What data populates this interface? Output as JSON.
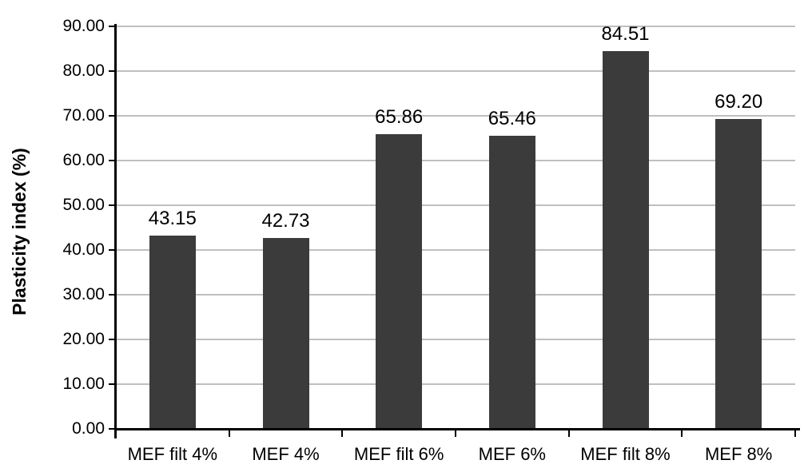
{
  "chart_data": {
    "type": "bar",
    "title": "",
    "xlabel": "",
    "ylabel": "Plasticity index (%)",
    "categories": [
      "MEF filt 4%",
      "MEF 4%",
      "MEF filt 6%",
      "MEF 6%",
      "MEF filt 8%",
      "MEF 8%"
    ],
    "values": [
      43.15,
      42.73,
      65.86,
      65.46,
      84.51,
      69.2
    ],
    "value_labels": [
      "43.15",
      "42.73",
      "65.86",
      "65.46",
      "84.51",
      "69.20"
    ],
    "ylim": [
      0,
      90
    ],
    "ytick_step": 10,
    "ytick_labels": [
      "0.00",
      "10.00",
      "20.00",
      "30.00",
      "40.00",
      "50.00",
      "60.00",
      "70.00",
      "80.00",
      "90.00"
    ],
    "grid": true,
    "legend": false,
    "bar_color": "#3b3b3b",
    "gridline_color": "#bfbfbf",
    "axis_color": "#000000",
    "text_color": "#000000",
    "background_color": "#ffffff"
  }
}
